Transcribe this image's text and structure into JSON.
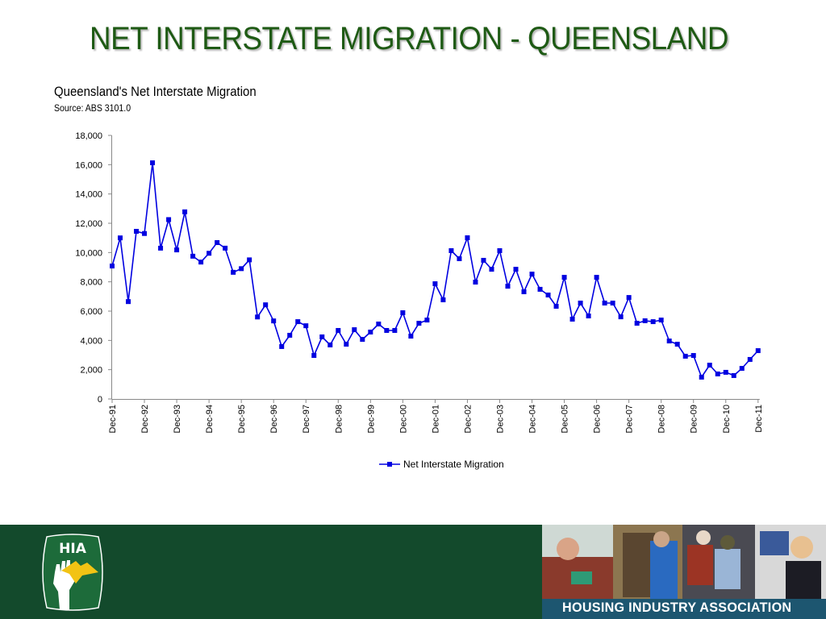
{
  "slide": {
    "title": "NET INTERSTATE MIGRATION - QUEENSLAND"
  },
  "chart_header": {
    "title": "Queensland's Net Interstate Migration",
    "source": "Source: ABS 3101.0"
  },
  "footer": {
    "logo_text": "HIA",
    "banner_text": "HOUSING INDUSTRY ASSOCIATION",
    "colors": {
      "footer_bg": "#134a2c",
      "banner_bg": "#1d5670",
      "logo_yellow": "#f2c314"
    }
  },
  "colors": {
    "title": "#1e5a14",
    "series": "#0000e0",
    "axis": "#888888"
  },
  "chart_data": {
    "type": "line",
    "title": "Queensland's Net Interstate Migration",
    "subtitle": "Source: ABS 3101.0",
    "xlabel": "",
    "ylabel": "",
    "ylim": [
      0,
      18000
    ],
    "yticks": [
      0,
      2000,
      4000,
      6000,
      8000,
      10000,
      12000,
      14000,
      16000,
      18000
    ],
    "ytick_labels": [
      "0",
      "2,000",
      "4,000",
      "6,000",
      "8,000",
      "10,000",
      "12,000",
      "14,000",
      "16,000",
      "18,000"
    ],
    "xtick_labels": [
      "Dec-91",
      "Dec-92",
      "Dec-93",
      "Dec-94",
      "Dec-95",
      "Dec-96",
      "Dec-97",
      "Dec-98",
      "Dec-99",
      "Dec-00",
      "Dec-01",
      "Dec-02",
      "Dec-03",
      "Dec-04",
      "Dec-05",
      "Dec-06",
      "Dec-07",
      "Dec-08",
      "Dec-09",
      "Dec-10",
      "Dec-11"
    ],
    "grid": false,
    "legend_position": "bottom",
    "frequency": "quarterly",
    "series": [
      {
        "name": "Net Interstate Migration",
        "marker": "square",
        "values": [
          9080,
          11000,
          6650,
          11450,
          11300,
          16130,
          10300,
          12250,
          10180,
          12780,
          9750,
          9350,
          9950,
          10680,
          10300,
          8650,
          8900,
          9500,
          5600,
          6430,
          5330,
          3580,
          4350,
          5280,
          5000,
          2970,
          4240,
          3690,
          4680,
          3740,
          4730,
          4070,
          4570,
          5120,
          4680,
          4680,
          5890,
          4290,
          5170,
          5390,
          7870,
          6770,
          10130,
          9580,
          11010,
          7980,
          9470,
          8860,
          10130,
          7700,
          8860,
          7320,
          8530,
          7490,
          7100,
          6330,
          8310,
          5450,
          6550,
          5670,
          8310,
          6550,
          6550,
          5610,
          6930,
          5170,
          5340,
          5280,
          5390,
          3960,
          3740,
          2920,
          2970,
          1490,
          2310,
          1710,
          1820,
          1600,
          2090,
          2700,
          3300
        ]
      }
    ]
  }
}
